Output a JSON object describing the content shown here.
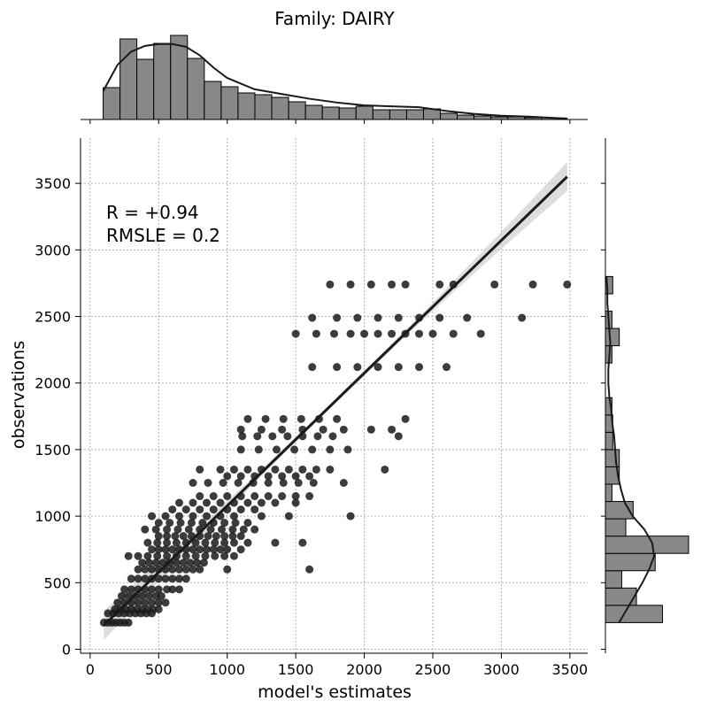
{
  "title": "Family: DAIRY",
  "annotation": {
    "r_line": "R = +0.94",
    "rmsle_line": "RMSLE =  0.2"
  },
  "colors": {
    "points": "#1a1a1a",
    "regression_line": "#1a1a1a",
    "confidence_band": "#cfcfcf",
    "histogram_fill": "#888888",
    "histogram_edge": "#000000",
    "grid": "#b0b0b0"
  },
  "chart_data": [
    {
      "id": "joint",
      "type": "scatter",
      "xlabel": "model's estimates",
      "ylabel": "observations",
      "xlim": [
        -70,
        3630
      ],
      "ylim": [
        -30,
        3840
      ],
      "xticks": [
        0,
        500,
        1000,
        1500,
        2000,
        2500,
        3000,
        3500
      ],
      "yticks": [
        0,
        500,
        1000,
        1500,
        2000,
        2500,
        3000,
        3500
      ],
      "grid": true,
      "grid_style": "dotted",
      "point_groups": [
        {
          "y": 200,
          "x": [
            100,
            130,
            160,
            190,
            220,
            250,
            280
          ]
        },
        {
          "y": 270,
          "x": [
            130,
            170,
            210,
            250,
            290,
            330,
            370,
            410,
            450
          ]
        },
        {
          "y": 300,
          "x": [
            180,
            220,
            260,
            300,
            340,
            380,
            420,
            460,
            500
          ]
        },
        {
          "y": 350,
          "x": [
            200,
            250,
            300,
            350,
            400,
            450,
            500,
            550
          ]
        },
        {
          "y": 400,
          "x": [
            230,
            280,
            330,
            380,
            430,
            480,
            520
          ]
        },
        {
          "y": 450,
          "x": [
            250,
            300,
            350,
            400,
            450,
            500,
            560,
            600,
            650
          ]
        },
        {
          "y": 530,
          "x": [
            300,
            350,
            400,
            450,
            500,
            550,
            600,
            650,
            700
          ]
        },
        {
          "y": 600,
          "x": [
            350,
            400,
            450,
            500,
            550,
            600,
            650,
            700,
            750,
            800,
            1000,
            1600
          ]
        },
        {
          "y": 650,
          "x": [
            380,
            430,
            480,
            530,
            580,
            630,
            680,
            730,
            780,
            830
          ]
        },
        {
          "y": 700,
          "x": [
            280,
            350,
            420,
            490,
            560,
            630,
            700,
            770,
            840,
            910,
            980,
            1050
          ]
        },
        {
          "y": 750,
          "x": [
            450,
            500,
            550,
            600,
            650,
            700,
            750,
            800,
            850,
            900,
            950,
            1000,
            1100
          ]
        },
        {
          "y": 800,
          "x": [
            420,
            490,
            560,
            630,
            700,
            770,
            840,
            910,
            980,
            1050,
            1150,
            1350,
            1550
          ]
        },
        {
          "y": 850,
          "x": [
            500,
            560,
            620,
            680,
            740,
            800,
            860,
            920,
            980,
            1040,
            1100
          ]
        },
        {
          "y": 900,
          "x": [
            400,
            480,
            560,
            640,
            720,
            800,
            880,
            960,
            1040,
            1120,
            1200
          ]
        },
        {
          "y": 950,
          "x": [
            500,
            580,
            660,
            740,
            820,
            900,
            980,
            1060,
            1150
          ]
        },
        {
          "y": 1000,
          "x": [
            450,
            550,
            650,
            750,
            850,
            950,
            1050,
            1250,
            1450,
            1900
          ]
        },
        {
          "y": 1050,
          "x": [
            600,
            700,
            800,
            900,
            1000,
            1100,
            1200
          ]
        },
        {
          "y": 1100,
          "x": [
            650,
            750,
            850,
            950,
            1050,
            1150,
            1250,
            1350,
            1500
          ]
        },
        {
          "y": 1150,
          "x": [
            800,
            900,
            1000,
            1100,
            1200,
            1300,
            1400,
            1500,
            1600
          ]
        },
        {
          "y": 1250,
          "x": [
            750,
            860,
            970,
            1080,
            1190,
            1300,
            1410,
            1520,
            1630,
            1850
          ]
        },
        {
          "y": 1300,
          "x": [
            1000,
            1100,
            1200,
            1300,
            1400,
            1500,
            1600
          ]
        },
        {
          "y": 1350,
          "x": [
            800,
            950,
            1050,
            1150,
            1250,
            1350,
            1450,
            1550,
            1650,
            1750,
            2150
          ]
        },
        {
          "y": 1500,
          "x": [
            1100,
            1230,
            1360,
            1490,
            1620,
            1750,
            1880
          ]
        },
        {
          "y": 1600,
          "x": [
            1110,
            1220,
            1330,
            1440,
            1550,
            1660,
            1770,
            2250
          ]
        },
        {
          "y": 1650,
          "x": [
            1100,
            1250,
            1400,
            1550,
            1700,
            1850,
            2050,
            2200
          ]
        },
        {
          "y": 1730,
          "x": [
            1150,
            1280,
            1410,
            1540,
            1670,
            1800,
            2300
          ]
        },
        {
          "y": 2120,
          "x": [
            1620,
            1800,
            1950,
            2100,
            2250,
            2400,
            2600
          ]
        },
        {
          "y": 2370,
          "x": [
            1500,
            1650,
            1780,
            1900,
            2000,
            2100,
            2200,
            2300,
            2400,
            2500,
            2650,
            2850
          ]
        },
        {
          "y": 2490,
          "x": [
            1620,
            1800,
            1950,
            2100,
            2250,
            2400,
            2550,
            2750,
            3150
          ]
        },
        {
          "y": 2740,
          "x": [
            1750,
            1900,
            2050,
            2200,
            2300,
            2550,
            2650,
            2950,
            3230,
            3480
          ]
        }
      ],
      "regression": {
        "x": [
          100,
          3480
        ],
        "y": [
          180,
          3550
        ],
        "ci_half_width_at_x_max": 110
      }
    },
    {
      "id": "marginal-x",
      "type": "bar",
      "xlabel": "",
      "ylabel": "",
      "bin_edges": [
        95,
        218,
        341,
        464,
        587,
        710,
        833,
        956,
        1079,
        1202,
        1325,
        1448,
        1571,
        1694,
        1817,
        1940,
        2063,
        2186,
        2309,
        2432,
        2555,
        2678,
        2801,
        2924,
        3047,
        3170,
        3293,
        3416,
        3480
      ],
      "counts": [
        36,
        91,
        68,
        86,
        95,
        69,
        43,
        37,
        30,
        28,
        25,
        20,
        16,
        14,
        13,
        15,
        11,
        11,
        11,
        12,
        7,
        5,
        4,
        3,
        3,
        2,
        2,
        1
      ],
      "kde_x": [
        95,
        200,
        300,
        400,
        500,
        600,
        700,
        800,
        900,
        1000,
        1200,
        1400,
        1600,
        1800,
        2000,
        2200,
        2400,
        2600,
        2800,
        3000,
        3200,
        3480
      ],
      "kde_y": [
        30,
        58,
        72,
        78,
        80,
        80,
        77,
        68,
        55,
        44,
        32,
        27,
        22,
        18,
        15,
        14,
        13,
        9,
        6,
        4,
        3,
        1
      ]
    },
    {
      "id": "marginal-y",
      "type": "bar",
      "orientation": "horizontal",
      "xlabel": "",
      "ylabel": "",
      "bin_edges": [
        200,
        330,
        460,
        590,
        720,
        850,
        980,
        1110,
        1240,
        1370,
        1500,
        1630,
        1760,
        1890,
        2020,
        2150,
        2280,
        2410,
        2540,
        2670,
        2800
      ],
      "counts": [
        70,
        38,
        20,
        61,
        102,
        25,
        34,
        8,
        17,
        17,
        9,
        9,
        8,
        0,
        0,
        8,
        17,
        8,
        0,
        9
      ],
      "kde_y": [
        200,
        300,
        400,
        500,
        600,
        700,
        800,
        900,
        1000,
        1100,
        1200,
        1300,
        1400,
        1500,
        1600,
        1700,
        1800,
        1900,
        2000,
        2100,
        2200,
        2300,
        2400,
        2500,
        2600,
        2700,
        2800
      ],
      "kde_x": [
        14,
        22,
        30,
        38,
        45,
        50,
        48,
        40,
        28,
        20,
        16,
        13,
        11,
        10,
        9,
        7,
        6,
        4,
        3,
        3,
        4,
        5,
        4,
        3,
        2,
        2,
        1
      ]
    }
  ]
}
